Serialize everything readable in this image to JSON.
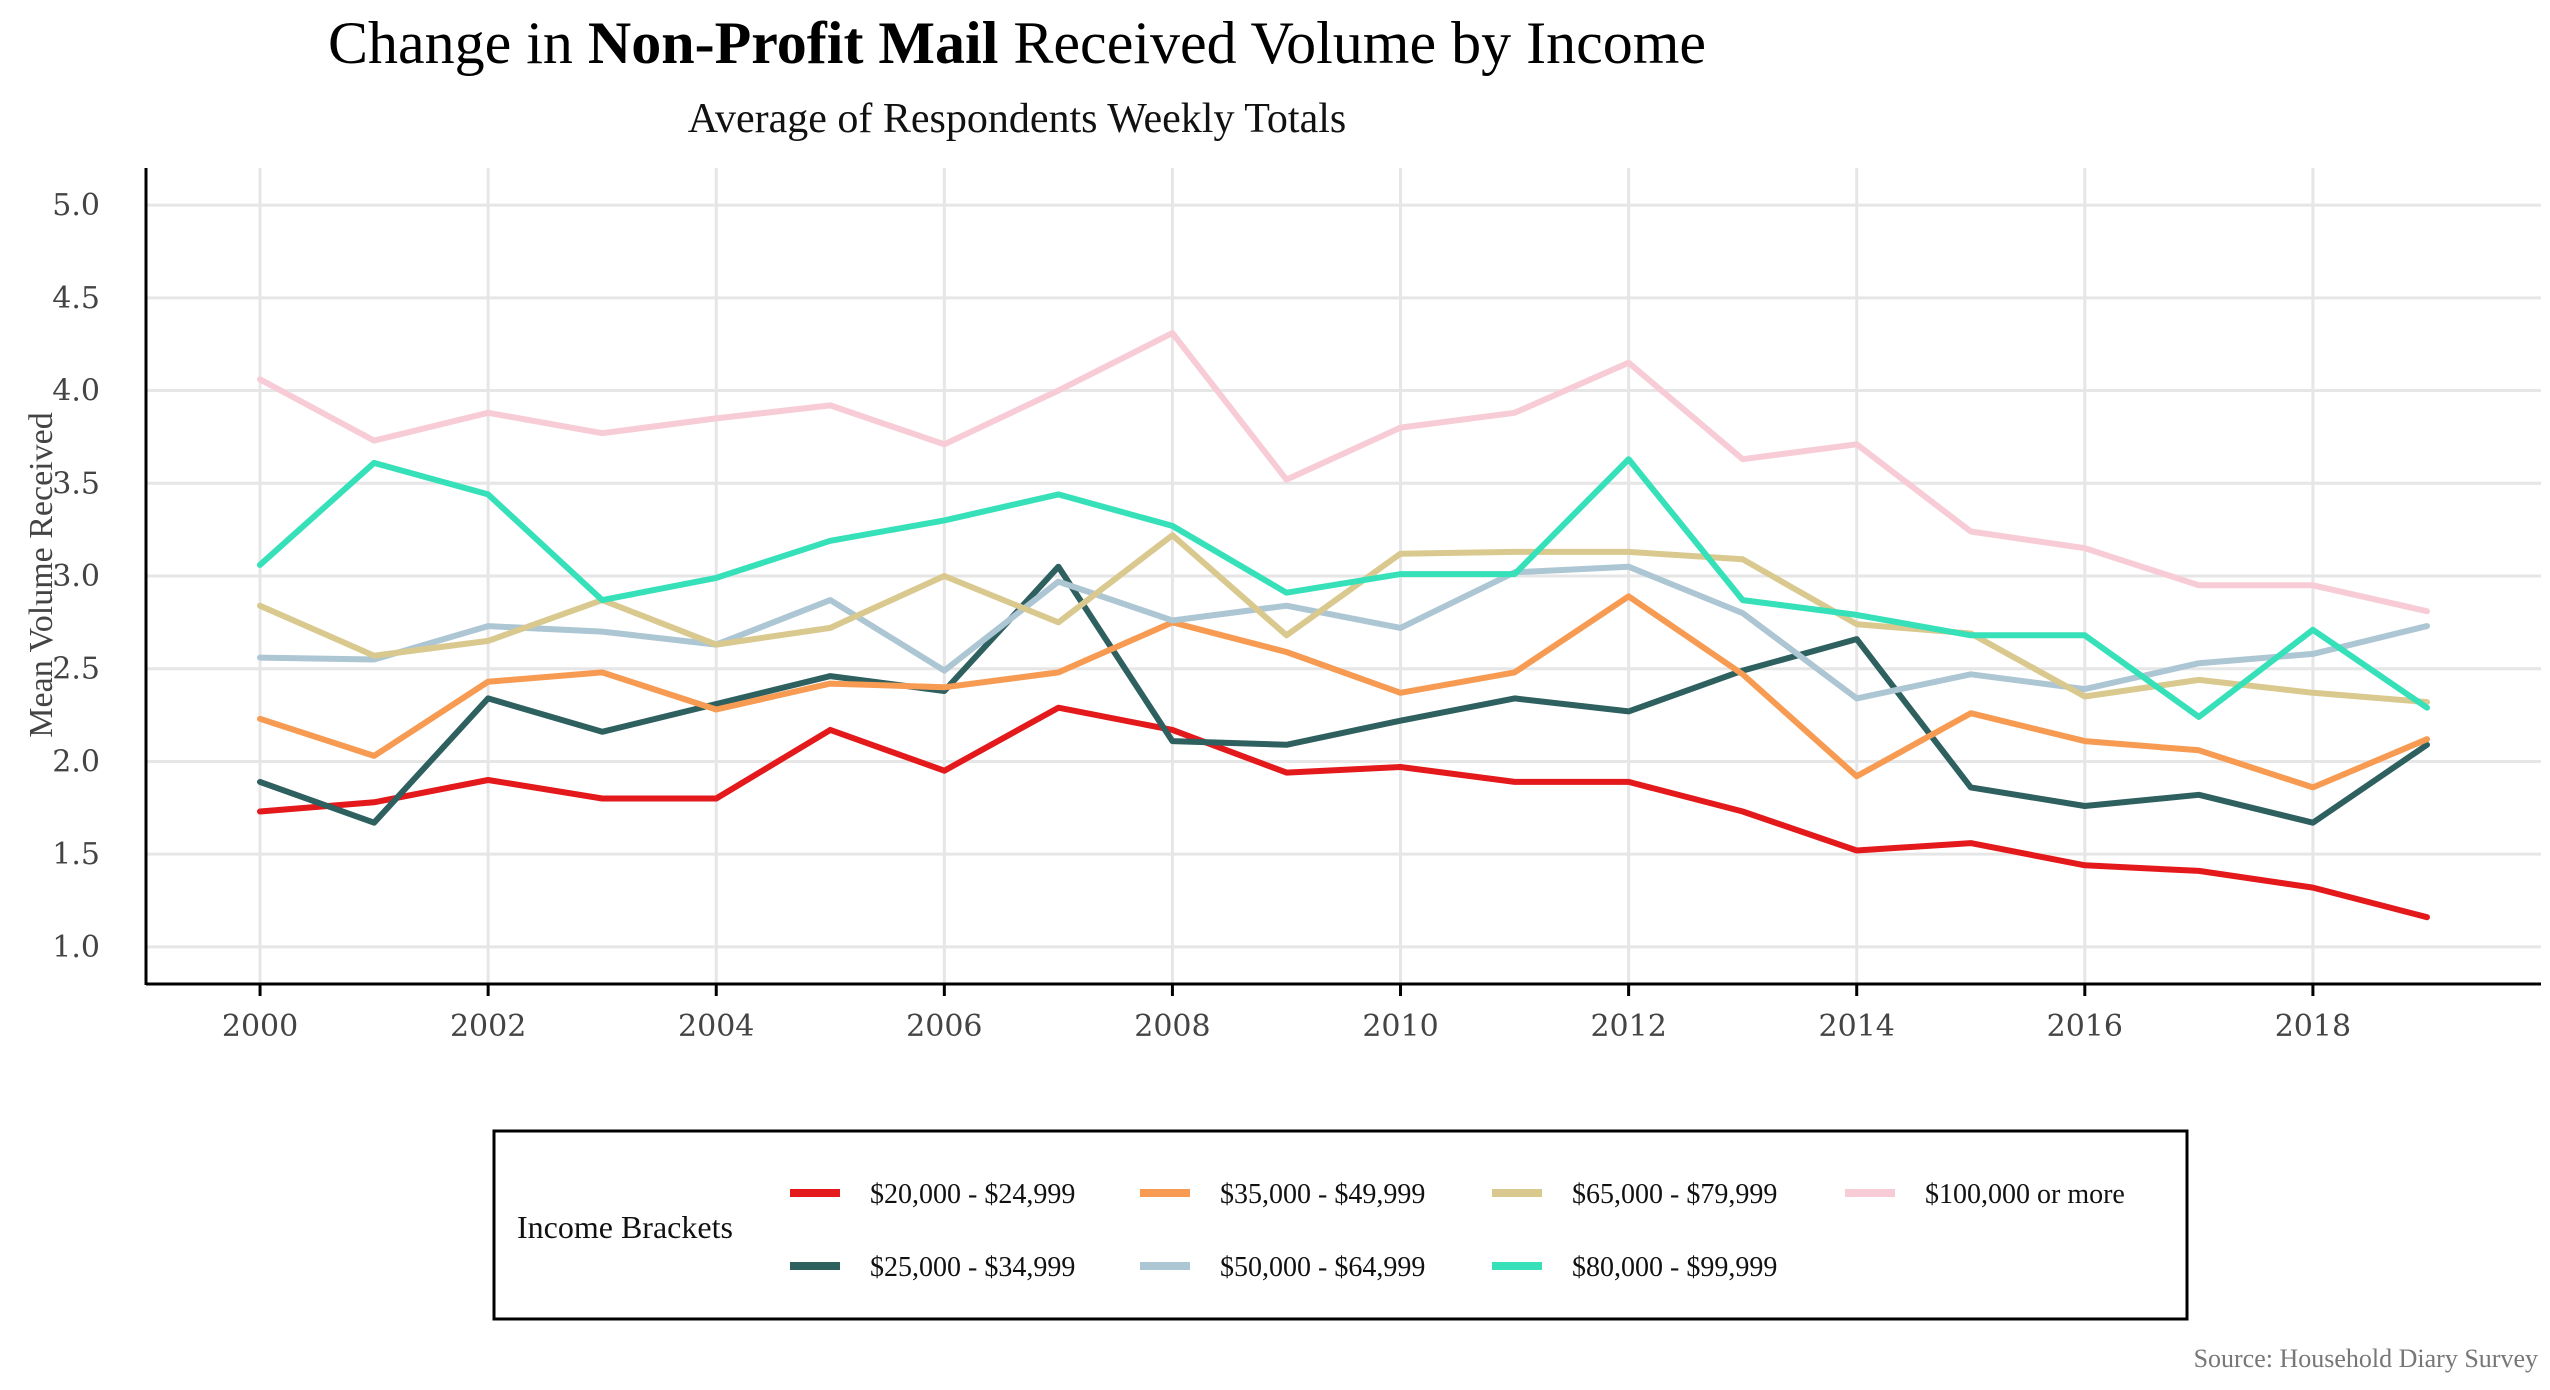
{
  "chart_data": {
    "type": "line",
    "title_prefix": "Change in ",
    "title_bold": "Non-Profit Mail",
    "title_suffix": " Received Volume by Income",
    "subtitle": "Average of Respondents Weekly Totals",
    "xlabel": "",
    "ylabel": "Mean Volume Received",
    "source": "Source: Household Diary Survey",
    "x": [
      2000,
      2001,
      2002,
      2003,
      2004,
      2005,
      2006,
      2007,
      2008,
      2009,
      2010,
      2011,
      2012,
      2013,
      2014,
      2015,
      2016,
      2017,
      2018,
      2019
    ],
    "xlim": [
      1999,
      2020
    ],
    "x_ticks": [
      "2000",
      "2002",
      "2004",
      "2006",
      "2008",
      "2010",
      "2012",
      "2014",
      "2016",
      "2018"
    ],
    "ylim": [
      0.8,
      5.2
    ],
    "y_ticks": [
      "1.0",
      "1.5",
      "2.0",
      "2.5",
      "3.0",
      "3.5",
      "4.0",
      "4.5",
      "5.0"
    ],
    "grid": true,
    "legend_title": "Income Brackets",
    "legend_position": "bottom",
    "series": [
      {
        "name": "$20,000 - $24,999",
        "color": "#e3191c",
        "values": [
          1.73,
          1.78,
          1.9,
          1.8,
          1.8,
          2.17,
          1.95,
          2.29,
          2.17,
          1.94,
          1.97,
          1.89,
          1.89,
          1.73,
          1.52,
          1.56,
          1.44,
          1.41,
          1.32,
          1.16
        ]
      },
      {
        "name": "$25,000 - $34,999",
        "color": "#2f6060",
        "values": [
          1.89,
          1.67,
          2.34,
          2.16,
          2.31,
          2.46,
          2.38,
          3.05,
          2.11,
          2.09,
          2.22,
          2.34,
          2.27,
          2.49,
          2.66,
          1.86,
          1.76,
          1.82,
          1.67,
          2.09
        ]
      },
      {
        "name": "$35,000 - $49,999",
        "color": "#f79a52",
        "values": [
          2.23,
          2.03,
          2.43,
          2.48,
          2.28,
          2.42,
          2.4,
          2.48,
          2.75,
          2.59,
          2.37,
          2.48,
          2.89,
          2.47,
          1.92,
          2.26,
          2.11,
          2.06,
          1.86,
          2.12
        ]
      },
      {
        "name": "$50,000 - $64,999",
        "color": "#adc6d3",
        "values": [
          2.56,
          2.55,
          2.73,
          2.7,
          2.63,
          2.87,
          2.49,
          2.97,
          2.76,
          2.84,
          2.72,
          3.02,
          3.05,
          2.8,
          2.34,
          2.47,
          2.39,
          2.53,
          2.58,
          2.73
        ]
      },
      {
        "name": "$65,000 - $79,999",
        "color": "#d9c98f",
        "values": [
          2.84,
          2.57,
          2.65,
          2.87,
          2.63,
          2.72,
          3.0,
          2.75,
          3.22,
          2.68,
          3.12,
          3.13,
          3.13,
          3.09,
          2.74,
          2.69,
          2.35,
          2.44,
          2.37,
          2.32
        ]
      },
      {
        "name": "$80,000 - $99,999",
        "color": "#36e0b9",
        "values": [
          3.06,
          3.61,
          3.44,
          2.87,
          2.99,
          3.19,
          3.3,
          3.44,
          3.27,
          2.91,
          3.01,
          3.01,
          3.63,
          2.87,
          2.79,
          2.68,
          2.68,
          2.24,
          2.71,
          2.29
        ]
      },
      {
        "name": "$100,000 or more",
        "color": "#f7ccd6",
        "values": [
          4.06,
          3.73,
          3.88,
          3.77,
          3.85,
          3.92,
          3.71,
          4.0,
          4.31,
          3.52,
          3.8,
          3.88,
          4.15,
          3.63,
          3.71,
          3.24,
          3.15,
          2.95,
          2.95,
          2.81
        ]
      }
    ]
  }
}
